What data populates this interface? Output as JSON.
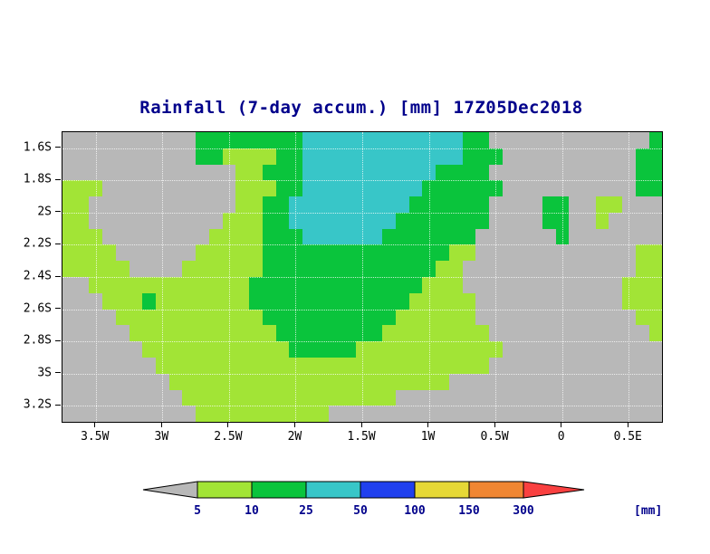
{
  "title": "Rainfall (7-day accum.) [mm] 17Z05Dec2018",
  "palette": {
    "gray": "#b8b8b8",
    "yellow_green": "#a2e436",
    "green": "#0ac43c",
    "cyan": "#38c6c8",
    "blue": "#2040ee",
    "yellow": "#e6d836",
    "orange": "#f08632",
    "red": "#f94040",
    "background": "#ffffff",
    "frame": "#000000",
    "title_color": "#00008b",
    "axis_label_color": "#000000"
  },
  "chart_data": {
    "type": "heatmap",
    "title": "Rainfall (7-day accum.) [mm] 17Z05Dec2018",
    "variable": "Rainfall (7-day accum.)",
    "units": "mm",
    "timestamp": "17Z05Dec2018",
    "x_axis": {
      "labels": [
        "3.5W",
        "3W",
        "2.5W",
        "2W",
        "1.5W",
        "1W",
        "0.5W",
        "0",
        "0.5E"
      ],
      "lon_values": [
        -3.5,
        -3,
        -2.5,
        -2,
        -1.5,
        -1,
        -0.5,
        0,
        0.5
      ],
      "range": [
        -3.75,
        0.75
      ]
    },
    "y_axis": {
      "labels": [
        "1.6S",
        "1.8S",
        "2S",
        "2.2S",
        "2.4S",
        "2.6S",
        "2.8S",
        "3S",
        "3.2S"
      ],
      "lat_values": [
        1.6,
        1.8,
        2.0,
        2.2,
        2.4,
        2.6,
        2.8,
        3.0,
        3.2
      ],
      "range": [
        1.5,
        3.3
      ],
      "hemisphere": "S"
    },
    "grid": {
      "ncols": 45,
      "nrows": 18,
      "cell_size_deg": 0.1,
      "legend_chars": {
        "g": "gray",
        "y": "yellow_green",
        "G": "green",
        "c": "cyan"
      },
      "value_ranges_mm": {
        "gray": "<5",
        "yellow_green": "5-10",
        "green": "10-25",
        "cyan": "25-50"
      },
      "rows": [
        "ggggggggggGGGGGGGGccccccccccccGGggggggggggggG",
        "ggggggggggGGyyyyGGccccccccccccGGGggggggggggGG",
        "gggggggggggggyyGGGccccccccccGGGGgggggggggggGG",
        "yyyggggggggggyyyGGcccccccccGGGGGGggggggggggGG",
        "yygggggggggggyyGGcccccccccGGGGGGggggGGggyyggg",
        "yyggggggggggyyyGGccccccccGGGGGGGggggGGggygggg",
        "yyyggggggggyyyyGGGccccccGGGGGGGggggggGggggggg",
        "yyyyggggggyyyyyGGGGGGGGGGGGGGyyggggggggggggyy",
        "yyyyyggggyyyyyyGGGGGGGGGGGGGyygggggggggggggyy",
        "ggyyyyyyyyyyyyGGGGGGGGGGGGGyyyggggggggggggyyy",
        "gggyyyGyyyyyyyGGGGGGGGGGGGyyyyygggggggggggyyy",
        "ggggyyyyyyyyyyyGGGGGGGGGGyyyyyyggggggggggggyy",
        "gggggyyyyyyyyyyyGGGGGGGGyyyyyyyyggggggggggggy",
        "ggggggyyyyyyyyyyyGGGGGyyyyyyyyyyygggggggggggg",
        "gggggggyyyyyyyyyyyyyyyyyyyyyyyyyggggggggggggg",
        "ggggggggyyyyyyyyyyyyyyyyyyyyygggggggggggggggg",
        "gggggggggyyyyyyyyyyyyyyyygggggggggggggggggggg",
        "ggggggggggyyyyyyyyyyggggggggggggggggggggggggg"
      ]
    },
    "legend": {
      "labels": [
        "5",
        "10",
        "25",
        "50",
        "100",
        "150",
        "300"
      ],
      "thresholds_mm": [
        5,
        10,
        25,
        50,
        100,
        150,
        300
      ],
      "unit_label": "[mm]",
      "segments": [
        "gray",
        "yellow_green",
        "green",
        "cyan",
        "blue",
        "yellow",
        "orange",
        "red"
      ],
      "position": "bottom"
    }
  }
}
